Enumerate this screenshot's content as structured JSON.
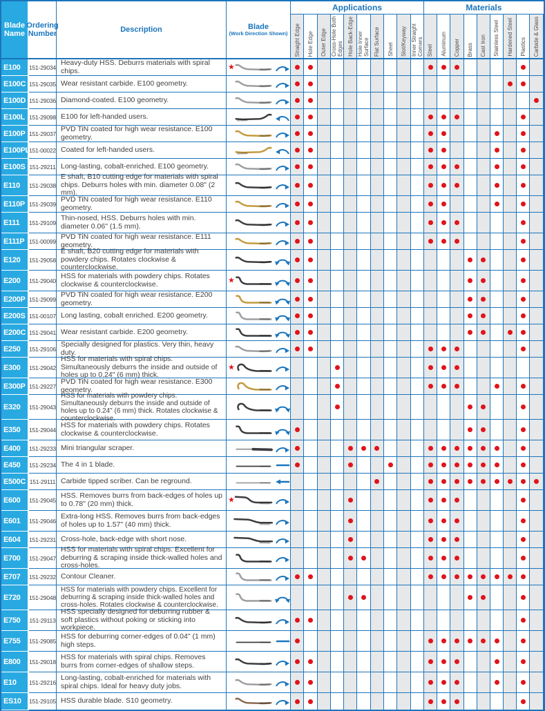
{
  "header": {
    "blade_name": "Blade Name",
    "ordering_number": "Ordering Number",
    "description": "Description",
    "blade_title": "Blade",
    "blade_subtitle": "(Work Direction Shown)",
    "applications_label": "Applications",
    "materials_label": "Materials",
    "application_columns": [
      "Straight Edge",
      "Hole Edge",
      "Outer Edge",
      "Cross-Hole Both Edges",
      "Hole Back-Edge",
      "Hole Inner Surface",
      "Flat Surface",
      "Sheet",
      "Slot/Keyway",
      "Inner Straight Corners"
    ],
    "material_columns": [
      "Steel",
      "Aluminum",
      "Copper",
      "Brass",
      "Cast Iron",
      "Stainless Steel",
      "Hardened Steel",
      "Plastics",
      "Carbide & Glass"
    ]
  },
  "colors": {
    "grid_blue": "#1b75bc",
    "label_cyan": "#29a9e1",
    "dot_red": "#e0141b",
    "shade_gray": "#e7e8e9",
    "blade_silver": "#9c9ea1",
    "blade_gold": "#c49a3f",
    "blade_dark": "#3b3d40",
    "blade_bronze": "#8a6a50"
  },
  "rows": [
    {
      "blade_name": "E100",
      "ordering_number": "151-29034",
      "description": "Heavy-duty HSS. Deburrs materials with spiral chips.",
      "star": true,
      "blade_shape": "s",
      "blade_finish": "silver",
      "work_direction": "rotary",
      "applications": [
        0,
        1
      ],
      "materials": [
        0,
        1,
        2,
        7
      ],
      "desc_lines": 1
    },
    {
      "blade_name": "E100C",
      "ordering_number": "151-29035",
      "description": "Wear resistant carbide. E100 geometry.",
      "star": false,
      "blade_shape": "s",
      "blade_finish": "silver",
      "work_direction": "rotary",
      "applications": [
        0,
        1
      ],
      "materials": [
        6,
        7
      ],
      "desc_lines": 1
    },
    {
      "blade_name": "E100D",
      "ordering_number": "151-29036",
      "description": "Diamond-coated. E100 geometry.",
      "star": false,
      "blade_shape": "s",
      "blade_finish": "silver",
      "work_direction": "rotary",
      "applications": [
        0,
        1
      ],
      "materials": [
        8
      ],
      "desc_lines": 1
    },
    {
      "blade_name": "E100L",
      "ordering_number": "151-29098",
      "description": "E100 for left-handed users.",
      "star": false,
      "blade_shape": "s-mirrored",
      "blade_finish": "dark",
      "work_direction": "rotary-mirrored",
      "applications": [
        0,
        1
      ],
      "materials": [
        0,
        1,
        2,
        7
      ],
      "desc_lines": 1
    },
    {
      "blade_name": "E100P",
      "ordering_number": "151-29037",
      "description": "PVD TiN coated for high wear resistance. E100 geometry.",
      "star": false,
      "blade_shape": "s",
      "blade_finish": "gold",
      "work_direction": "rotary",
      "applications": [
        0,
        1
      ],
      "materials": [
        0,
        1,
        5,
        7
      ],
      "desc_lines": 1
    },
    {
      "blade_name": "E100PL",
      "ordering_number": "151-00022",
      "description": "Coated for left-handed users.",
      "star": false,
      "blade_shape": "s-mirrored",
      "blade_finish": "gold",
      "work_direction": "rotary-mirrored",
      "applications": [
        0,
        1
      ],
      "materials": [
        0,
        1,
        5,
        7
      ],
      "desc_lines": 1
    },
    {
      "blade_name": "E100S",
      "ordering_number": "151-29211",
      "description": "Long-lasting, cobalt-enriched. E100 geometry.",
      "star": false,
      "blade_shape": "s",
      "blade_finish": "silver",
      "work_direction": "rotary",
      "applications": [
        0,
        1
      ],
      "materials": [
        0,
        1,
        2,
        5,
        7
      ],
      "desc_lines": 1
    },
    {
      "blade_name": "E110",
      "ordering_number": "151-29038",
      "description": "E shaft, B10 cutting edge for materials with spiral chips. Deburrs holes with min. diameter 0.08\" (2 mm).",
      "star": false,
      "blade_shape": "s",
      "blade_finish": "dark",
      "work_direction": "rotary",
      "applications": [
        0,
        1
      ],
      "materials": [
        0,
        1,
        2,
        5,
        7
      ],
      "desc_lines": 2
    },
    {
      "blade_name": "E110P",
      "ordering_number": "151-29039",
      "description": "PVD TiN coated for high wear resistance. E110 geometry.",
      "star": false,
      "blade_shape": "s",
      "blade_finish": "gold",
      "work_direction": "rotary",
      "applications": [
        0,
        1
      ],
      "materials": [
        0,
        1,
        5,
        7
      ],
      "desc_lines": 1
    },
    {
      "blade_name": "E111",
      "ordering_number": "151-29109",
      "description": "Thin-nosed, HSS. Deburrs holes with min. diameter 0.06\" (1.5 mm).",
      "star": false,
      "blade_shape": "s",
      "blade_finish": "dark",
      "work_direction": "rotary",
      "applications": [
        0,
        1
      ],
      "materials": [
        0,
        1,
        2,
        7
      ],
      "desc_lines": 2
    },
    {
      "blade_name": "E111P",
      "ordering_number": "151-00099",
      "description": "PVD TiN coated for high wear resistance. E111 geometry.",
      "star": false,
      "blade_shape": "s",
      "blade_finish": "gold",
      "work_direction": "rotary",
      "applications": [
        0,
        1
      ],
      "materials": [
        0,
        1,
        2,
        7
      ],
      "desc_lines": 1
    },
    {
      "blade_name": "E120",
      "ordering_number": "151-29058",
      "description": "E shaft, B20 cutting edge for materials with powdery chips. Rotates clockwise & counterclockwise.",
      "star": false,
      "blade_shape": "s",
      "blade_finish": "dark",
      "work_direction": "rotary-bidirectional",
      "applications": [
        0,
        1
      ],
      "materials": [
        3,
        4,
        7
      ],
      "desc_lines": 2
    },
    {
      "blade_name": "E200",
      "ordering_number": "151-29040",
      "description": "HSS for materials with powdery chips. Rotates clockwise & counterclockwise.",
      "star": true,
      "blade_shape": "s2",
      "blade_finish": "dark",
      "work_direction": "rotary-bidirectional",
      "applications": [
        0,
        1
      ],
      "materials": [
        3,
        4,
        7
      ],
      "desc_lines": 2
    },
    {
      "blade_name": "E200P",
      "ordering_number": "151-29099",
      "description": "PVD TiN coated for high wear resistance. E200 geometry.",
      "star": false,
      "blade_shape": "s2",
      "blade_finish": "gold",
      "work_direction": "rotary-bidirectional",
      "applications": [
        0,
        1
      ],
      "materials": [
        3,
        4,
        7
      ],
      "desc_lines": 1
    },
    {
      "blade_name": "E200S",
      "ordering_number": "151-00107",
      "description": "Long lasting, cobalt enriched. E200 geometry.",
      "star": false,
      "blade_shape": "s2",
      "blade_finish": "silver",
      "work_direction": "rotary-bidirectional",
      "applications": [
        0,
        1
      ],
      "materials": [
        3,
        4,
        7
      ],
      "desc_lines": 1
    },
    {
      "blade_name": "E200C",
      "ordering_number": "151-29041",
      "description": "Wear resistant carbide. E200 geometry.",
      "star": false,
      "blade_shape": "s2",
      "blade_finish": "dark",
      "work_direction": "rotary-bidirectional",
      "applications": [
        0,
        1
      ],
      "materials": [
        3,
        4,
        6,
        7
      ],
      "desc_lines": 1
    },
    {
      "blade_name": "E250",
      "ordering_number": "151-29106",
      "description": "Specially designed for plastics. Very thin, heavy duty.",
      "star": false,
      "blade_shape": "s",
      "blade_finish": "silver",
      "work_direction": "rotary",
      "applications": [
        0,
        1
      ],
      "materials": [
        0,
        1,
        2,
        7
      ],
      "desc_lines": 1
    },
    {
      "blade_name": "E300",
      "ordering_number": "151-29042",
      "description": "HSS for materials with spiral chips. Simultaneously deburrs the inside and outside of holes up to 0.24\" (6 mm) thick.",
      "star": true,
      "blade_shape": "hook",
      "blade_finish": "dark",
      "work_direction": "rotary",
      "applications": [
        3
      ],
      "materials": [
        0,
        1,
        2
      ],
      "desc_lines": 2
    },
    {
      "blade_name": "E300P",
      "ordering_number": "151-29227",
      "description": "PVD TiN coated for high wear resistance. E300 geometry.",
      "star": false,
      "blade_shape": "hook",
      "blade_finish": "gold",
      "work_direction": "rotary",
      "applications": [
        3
      ],
      "materials": [
        0,
        1,
        2,
        5,
        7
      ],
      "desc_lines": 1
    },
    {
      "blade_name": "E320",
      "ordering_number": "151-29043",
      "description": "HSS for materials with powdery chips. Simultaneously deburrs the inside and outside of holes up to 0.24\" (6 mm) thick. Rotates clockwise & counterclockwise.",
      "star": false,
      "blade_shape": "hook",
      "blade_finish": "dark",
      "work_direction": "rotary-bidirectional",
      "applications": [
        3
      ],
      "materials": [
        3,
        4,
        7
      ],
      "desc_lines": 3
    },
    {
      "blade_name": "E350",
      "ordering_number": "151-29044",
      "description": "HSS for materials with powdery chips. Rotates clockwise & counterclockwise.",
      "star": false,
      "blade_shape": "s2",
      "blade_finish": "dark",
      "work_direction": "rotary-bidirectional",
      "applications": [
        0
      ],
      "materials": [
        3,
        4,
        7
      ],
      "desc_lines": 2
    },
    {
      "blade_name": "E400",
      "ordering_number": "151-29233",
      "description": "Mini triangular scraper.",
      "star": false,
      "blade_shape": "triangular",
      "blade_finish": "silver",
      "work_direction": "rotary",
      "applications": [
        0,
        4,
        5,
        6
      ],
      "materials": [
        0,
        1,
        2,
        3,
        4,
        5,
        7
      ],
      "desc_lines": 1
    },
    {
      "blade_name": "E450",
      "ordering_number": "151-29234",
      "description": "The 4 in 1 blade.",
      "star": false,
      "blade_shape": "straight",
      "blade_finish": "dark",
      "work_direction": "linear",
      "applications": [
        0,
        4,
        7
      ],
      "materials": [
        0,
        1,
        2,
        3,
        4,
        5,
        7
      ],
      "desc_lines": 1
    },
    {
      "blade_name": "E500C",
      "ordering_number": "151-29111",
      "description": "Carbide tipped scriber. Can be reground.",
      "star": false,
      "blade_shape": "straight",
      "blade_finish": "silver",
      "work_direction": "linear-reverse",
      "applications": [
        6
      ],
      "materials": [
        0,
        1,
        2,
        3,
        4,
        5,
        6,
        7,
        8
      ],
      "desc_lines": 1
    },
    {
      "blade_name": "E600",
      "ordering_number": "151-29045",
      "description": "HSS. Removes burrs from back-edges of holes up to 0.78\" (20 mm) thick.",
      "star": true,
      "blade_shape": "step",
      "blade_finish": "dark",
      "work_direction": "rotary",
      "applications": [
        4
      ],
      "materials": [
        0,
        1,
        2,
        7
      ],
      "desc_lines": 2
    },
    {
      "blade_name": "E601",
      "ordering_number": "151-29046",
      "description": "Extra-long HSS. Removes burrs from back-edges of holes up to 1.57\" (40 mm) thick.",
      "star": false,
      "blade_shape": "long",
      "blade_finish": "dark",
      "work_direction": "rotary",
      "applications": [
        4
      ],
      "materials": [
        0,
        1,
        2,
        7
      ],
      "desc_lines": 2
    },
    {
      "blade_name": "E604",
      "ordering_number": "151-29231",
      "description": "Cross-hole, back-edge with short nose.",
      "star": false,
      "blade_shape": "long",
      "blade_finish": "dark",
      "work_direction": "rotary",
      "applications": [
        4
      ],
      "materials": [
        0,
        1,
        2,
        7
      ],
      "desc_lines": 1
    },
    {
      "blade_name": "E700",
      "ordering_number": "151-29047",
      "description": "HSS for materials with spiral chips. Excellent for deburring & scraping inside thick-walled holes and cross-holes.",
      "star": false,
      "blade_shape": "s2",
      "blade_finish": "dark",
      "work_direction": "rotary",
      "applications": [
        4,
        5
      ],
      "materials": [
        0,
        1,
        2,
        7
      ],
      "desc_lines": 2
    },
    {
      "blade_name": "E707",
      "ordering_number": "151-29232",
      "description": "Contour Cleaner.",
      "star": false,
      "blade_shape": "s2",
      "blade_finish": "silver",
      "work_direction": "rotary",
      "applications": [
        0,
        1
      ],
      "materials": [
        0,
        1,
        2,
        3,
        4,
        5,
        6,
        7
      ],
      "desc_lines": 1
    },
    {
      "blade_name": "E720",
      "ordering_number": "151-29048",
      "description": "HSS for materials with powdery chips. Excellent for deburring & scraping inside thick-walled holes and cross-holes. Rotates clockwise & counterclockwise.",
      "star": false,
      "blade_shape": "s2",
      "blade_finish": "silver",
      "work_direction": "rotary-bidirectional",
      "applications": [
        4,
        5
      ],
      "materials": [
        3,
        4,
        7
      ],
      "desc_lines": 3
    },
    {
      "blade_name": "E750",
      "ordering_number": "151-29113",
      "description": "HSS specially designed for deburring rubber & soft plastics without poking or sticking into workpiece.",
      "star": false,
      "blade_shape": "s",
      "blade_finish": "dark",
      "work_direction": "rotary",
      "applications": [
        0,
        1
      ],
      "materials": [
        7
      ],
      "desc_lines": 2
    },
    {
      "blade_name": "E755",
      "ordering_number": "151-29085",
      "description": "HSS for deburring corner-edges of 0.04\" (1 mm) high steps.",
      "star": false,
      "blade_shape": "straight",
      "blade_finish": "dark",
      "work_direction": "linear",
      "applications": [
        0
      ],
      "materials": [
        0,
        1,
        2,
        3,
        4,
        5,
        7
      ],
      "desc_lines": 2
    },
    {
      "blade_name": "E800",
      "ordering_number": "151-29018",
      "description": "HSS for materials with spiral chips. Removes burrs from corner-edges of shallow steps.",
      "star": false,
      "blade_shape": "s",
      "blade_finish": "dark",
      "work_direction": "rotary",
      "applications": [
        0,
        1
      ],
      "materials": [
        0,
        1,
        2,
        5,
        7
      ],
      "desc_lines": 2
    },
    {
      "blade_name": "E10",
      "ordering_number": "151-29216",
      "description": "Long-lasting, cobalt-enriched for materials with spiral chips. Ideal for heavy duty jobs.",
      "star": false,
      "blade_shape": "s",
      "blade_finish": "silver",
      "work_direction": "rotary",
      "applications": [
        0,
        1
      ],
      "materials": [
        0,
        1,
        2,
        5,
        7
      ],
      "desc_lines": 2
    },
    {
      "blade_name": "ES10",
      "ordering_number": "151-29105",
      "description": "HSS durable blade. S10 geometry.",
      "star": false,
      "blade_shape": "s",
      "blade_finish": "bronze",
      "work_direction": "rotary",
      "applications": [
        0,
        1
      ],
      "materials": [
        0,
        1,
        2,
        7
      ],
      "desc_lines": 1
    }
  ]
}
